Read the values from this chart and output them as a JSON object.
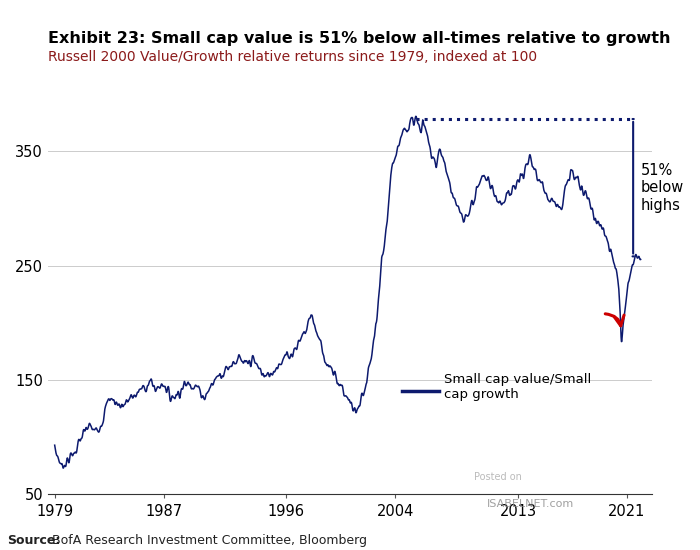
{
  "title": "Exhibit 23: Small cap value is 51% below all-times relative to growth",
  "subtitle": "Russell 2000 Value/Growth relative returns since 1979, indexed at 100",
  "source_bold": "Source:",
  "source_text": "BofA Research Investment Committee, Bloomberg",
  "xlabel_ticks": [
    1979,
    1987,
    1996,
    2004,
    2013,
    2021
  ],
  "ylim": [
    50,
    410
  ],
  "yticks": [
    50,
    150,
    250,
    350
  ],
  "line_color": "#0d1a6e",
  "background_color": "#ffffff",
  "dotted_line_color": "#0d1a6e",
  "annotation_color": "#0d1a6e",
  "arrow_color": "#cc0000",
  "legend_label": "Small cap value/Small\ncap growth",
  "pct_label": "51%\nbelow\nhighs",
  "watermark_top": "Posted on",
  "watermark_bot": "ISABELNET.com"
}
